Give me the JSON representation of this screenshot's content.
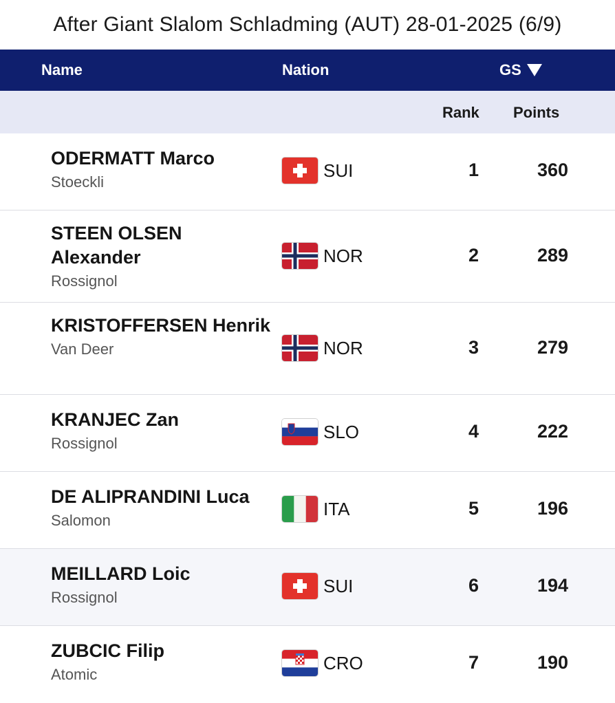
{
  "title": "After Giant Slalom Schladming (AUT) 28-01-2025 (6/9)",
  "header": {
    "name": "Name",
    "nation": "Nation",
    "gs": "GS"
  },
  "subheader": {
    "rank": "Rank",
    "points": "Points"
  },
  "rows": [
    {
      "athlete": "ODERMATT Marco",
      "brand": "Stoeckli",
      "flag": "sui-flag-icon",
      "nation": "SUI",
      "rank": "1",
      "points": "360"
    },
    {
      "athlete": "STEEN OLSEN Alexander",
      "brand": "Rossignol",
      "flag": "nor-flag-icon",
      "nation": "NOR",
      "rank": "2",
      "points": "289"
    },
    {
      "athlete": "KRISTOFFERSEN Henrik",
      "brand": "Van Deer",
      "flag": "nor-flag-icon",
      "nation": "NOR",
      "rank": "3",
      "points": "279"
    },
    {
      "athlete": "KRANJEC Zan",
      "brand": "Rossignol",
      "flag": "slo-flag-icon",
      "nation": "SLO",
      "rank": "4",
      "points": "222"
    },
    {
      "athlete": "DE ALIPRANDINI Luca",
      "brand": "Salomon",
      "flag": "ita-flag-icon",
      "nation": "ITA",
      "rank": "5",
      "points": "196"
    },
    {
      "athlete": "MEILLARD Loic",
      "brand": "Rossignol",
      "flag": "sui-flag-icon",
      "nation": "SUI",
      "rank": "6",
      "points": "194"
    },
    {
      "athlete": "ZUBCIC Filip",
      "brand": "Atomic",
      "flag": "cro-flag-icon",
      "nation": "CRO",
      "rank": "7",
      "points": "190"
    }
  ],
  "colors": {
    "header_bg": "#0f1f6e",
    "subheader_bg": "#e6e8f5",
    "highlight_row": "#f5f6fa"
  }
}
